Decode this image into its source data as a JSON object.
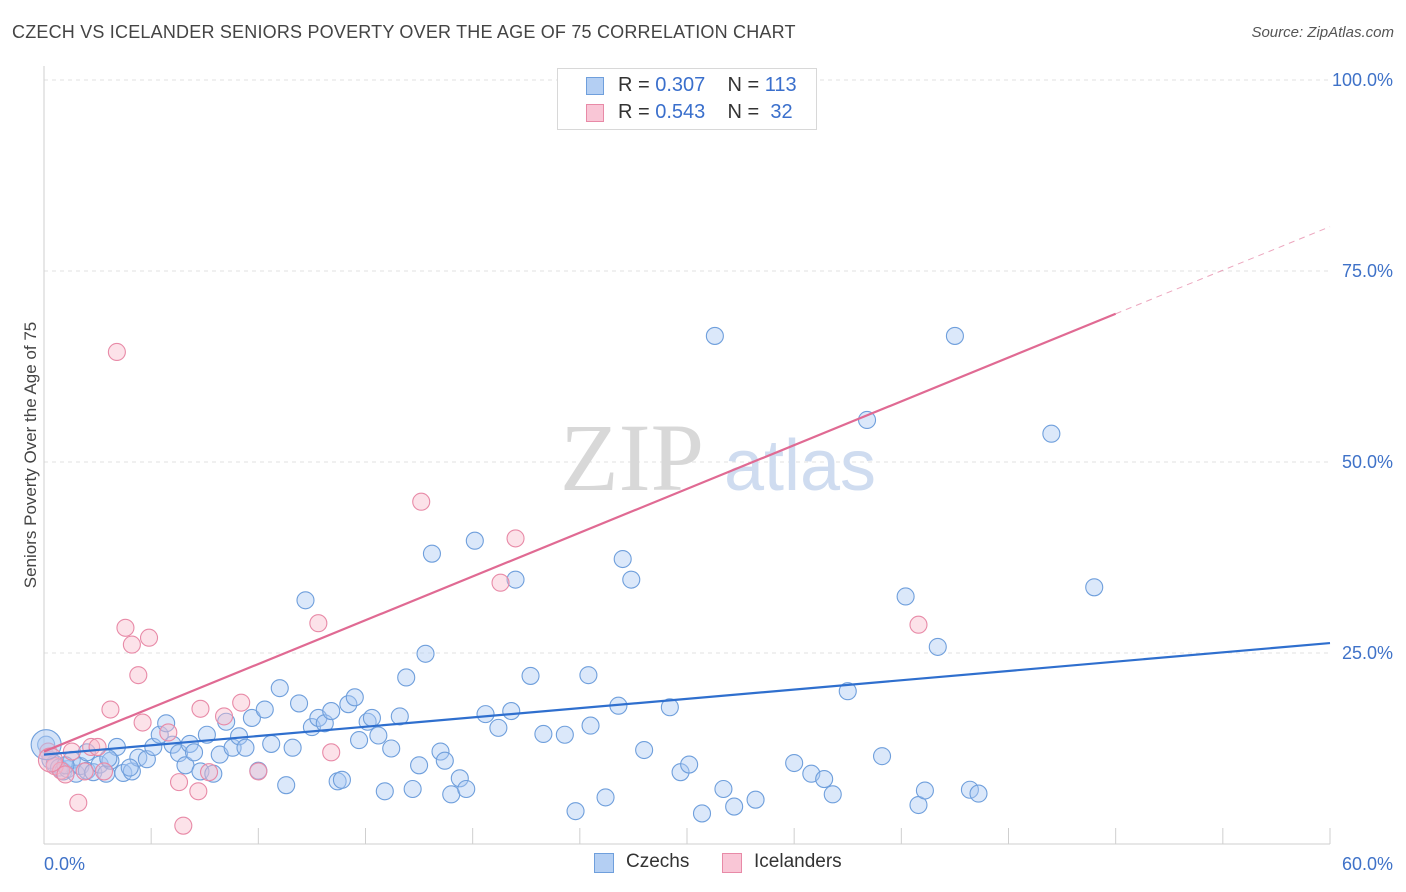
{
  "header": {
    "title": "CZECH VS ICELANDER SENIORS POVERTY OVER THE AGE OF 75 CORRELATION CHART",
    "source": "Source: ZipAtlas.com"
  },
  "watermark": {
    "zip": "ZIP",
    "atlas": "atlas"
  },
  "legend": {
    "czechs": {
      "r_label": "R =",
      "r_value": "0.307",
      "n_label": "N =",
      "n_value": "113"
    },
    "icelanders": {
      "r_label": "R =",
      "r_value": "0.543",
      "n_label": "N =",
      "n_value": "32"
    }
  },
  "bottom_legend": {
    "czechs": "Czechs",
    "icelanders": "Icelanders"
  },
  "colors": {
    "czech_fill": "#a9c7f2",
    "czech_stroke": "#6f9fdc",
    "czech_line": "#2f6fce",
    "iceland_fill": "#f7b9cb",
    "iceland_stroke": "#e88aa7",
    "iceland_line": "#e06a93",
    "grid": "#e2e2e2",
    "tick_text": "#3f72c8"
  },
  "chart_data": {
    "type": "scatter",
    "title": "CZECH VS ICELANDER SENIORS POVERTY OVER THE AGE OF 75 CORRELATION CHART",
    "ylabel": "Seniors Poverty Over the Age of 75",
    "xlim": [
      0,
      60
    ],
    "ylim": [
      0,
      100
    ],
    "x_tick_labels": [
      "0.0%",
      "60.0%"
    ],
    "y_ticks": [
      25,
      50,
      75,
      100
    ],
    "y_tick_labels": [
      "25.0%",
      "50.0%",
      "75.0%",
      "100.0%"
    ],
    "grid": true,
    "series": [
      {
        "name": "Czechs",
        "r": 0.307,
        "n": 113,
        "trend": {
          "x": [
            0,
            60
          ],
          "y": [
            11.7,
            26.3
          ]
        },
        "points": [
          [
            0.1,
            13
          ],
          [
            0.3,
            11
          ],
          [
            0.5,
            10.5
          ],
          [
            0.7,
            10
          ],
          [
            0.9,
            9.5
          ],
          [
            1.1,
            9.8
          ],
          [
            1.3,
            11
          ],
          [
            1.5,
            9.2
          ],
          [
            1.7,
            10.2
          ],
          [
            2.0,
            9.6
          ],
          [
            2.3,
            9.4
          ],
          [
            2.6,
            10.4
          ],
          [
            2.9,
            9.2
          ],
          [
            3.1,
            10.9
          ],
          [
            3.4,
            12.7
          ],
          [
            3.7,
            9.3
          ],
          [
            4.1,
            9.5
          ],
          [
            4.4,
            11.3
          ],
          [
            4.8,
            11.1
          ],
          [
            5.1,
            12.7
          ],
          [
            5.4,
            14.3
          ],
          [
            5.7,
            15.8
          ],
          [
            6.0,
            13.0
          ],
          [
            6.3,
            11.9
          ],
          [
            6.6,
            10.3
          ],
          [
            6.8,
            13.1
          ],
          [
            7.0,
            12.0
          ],
          [
            7.3,
            9.5
          ],
          [
            7.6,
            14.3
          ],
          [
            7.9,
            9.2
          ],
          [
            8.2,
            11.7
          ],
          [
            8.5,
            16.0
          ],
          [
            8.8,
            12.6
          ],
          [
            9.1,
            14.1
          ],
          [
            9.4,
            12.6
          ],
          [
            9.7,
            16.5
          ],
          [
            10.0,
            9.6
          ],
          [
            10.3,
            17.6
          ],
          [
            10.6,
            13.1
          ],
          [
            11.0,
            20.4
          ],
          [
            11.3,
            7.7
          ],
          [
            11.6,
            12.6
          ],
          [
            11.9,
            18.4
          ],
          [
            12.2,
            31.9
          ],
          [
            12.5,
            15.3
          ],
          [
            12.8,
            16.5
          ],
          [
            13.1,
            15.8
          ],
          [
            13.4,
            17.4
          ],
          [
            13.7,
            8.2
          ],
          [
            13.9,
            8.4
          ],
          [
            14.2,
            18.3
          ],
          [
            14.5,
            19.2
          ],
          [
            14.7,
            13.6
          ],
          [
            15.1,
            16.0
          ],
          [
            15.3,
            16.5
          ],
          [
            15.6,
            14.2
          ],
          [
            15.9,
            6.9
          ],
          [
            16.2,
            12.5
          ],
          [
            16.6,
            16.7
          ],
          [
            16.9,
            21.8
          ],
          [
            17.2,
            7.2
          ],
          [
            17.5,
            10.3
          ],
          [
            17.8,
            24.9
          ],
          [
            18.1,
            38.0
          ],
          [
            18.5,
            12.1
          ],
          [
            18.7,
            10.9
          ],
          [
            19.0,
            6.5
          ],
          [
            19.4,
            8.6
          ],
          [
            19.7,
            7.2
          ],
          [
            20.1,
            39.7
          ],
          [
            20.6,
            17.0
          ],
          [
            21.2,
            15.2
          ],
          [
            21.8,
            17.4
          ],
          [
            22.0,
            34.6
          ],
          [
            22.7,
            22.0
          ],
          [
            23.3,
            14.4
          ],
          [
            24.3,
            14.3
          ],
          [
            24.8,
            4.3
          ],
          [
            25.4,
            22.1
          ],
          [
            25.5,
            15.5
          ],
          [
            26.2,
            6.1
          ],
          [
            26.8,
            18.1
          ],
          [
            27.0,
            37.3
          ],
          [
            27.4,
            34.6
          ],
          [
            28.0,
            12.3
          ],
          [
            29.2,
            17.9
          ],
          [
            29.7,
            9.4
          ],
          [
            30.1,
            10.4
          ],
          [
            30.7,
            4.0
          ],
          [
            31.3,
            66.5
          ],
          [
            31.7,
            7.2
          ],
          [
            32.2,
            4.9
          ],
          [
            33.2,
            5.8
          ],
          [
            35.0,
            10.6
          ],
          [
            35.8,
            9.2
          ],
          [
            36.4,
            8.5
          ],
          [
            36.8,
            6.5
          ],
          [
            37.5,
            20.0
          ],
          [
            38.4,
            55.5
          ],
          [
            39.1,
            11.5
          ],
          [
            40.2,
            32.4
          ],
          [
            40.8,
            5.1
          ],
          [
            41.1,
            7.0
          ],
          [
            41.7,
            25.8
          ],
          [
            42.5,
            66.5
          ],
          [
            43.2,
            7.1
          ],
          [
            43.6,
            6.6
          ],
          [
            47.0,
            53.7
          ],
          [
            49.0,
            33.6
          ],
          [
            1.0,
            10.3
          ],
          [
            2.0,
            12.0
          ],
          [
            3.0,
            11.2
          ],
          [
            4.0,
            10.0
          ]
        ]
      },
      {
        "name": "Icelanders",
        "r": 0.543,
        "n": 32,
        "trend": {
          "x": [
            0,
            50
          ],
          "y": [
            12.1,
            69.4
          ]
        },
        "trend_dashed": {
          "x": [
            50,
            60
          ],
          "y": [
            69.4,
            80.8
          ]
        },
        "points": [
          [
            0.2,
            12.1
          ],
          [
            0.5,
            10.2
          ],
          [
            0.8,
            9.6
          ],
          [
            1.0,
            9.1
          ],
          [
            1.3,
            12.1
          ],
          [
            1.6,
            5.4
          ],
          [
            1.9,
            9.5
          ],
          [
            2.2,
            12.7
          ],
          [
            2.5,
            12.7
          ],
          [
            2.8,
            9.5
          ],
          [
            3.1,
            17.6
          ],
          [
            3.4,
            64.4
          ],
          [
            3.8,
            28.3
          ],
          [
            4.1,
            26.1
          ],
          [
            4.4,
            22.1
          ],
          [
            4.6,
            15.9
          ],
          [
            4.9,
            27.0
          ],
          [
            5.8,
            14.6
          ],
          [
            6.3,
            8.1
          ],
          [
            6.5,
            2.4
          ],
          [
            7.2,
            6.9
          ],
          [
            7.3,
            17.7
          ],
          [
            7.7,
            9.4
          ],
          [
            8.4,
            16.7
          ],
          [
            9.2,
            18.5
          ],
          [
            10.0,
            9.5
          ],
          [
            12.8,
            28.9
          ],
          [
            13.4,
            12.0
          ],
          [
            17.6,
            44.8
          ],
          [
            21.3,
            34.2
          ],
          [
            22.0,
            40.0
          ],
          [
            40.8,
            28.7
          ]
        ]
      }
    ]
  }
}
